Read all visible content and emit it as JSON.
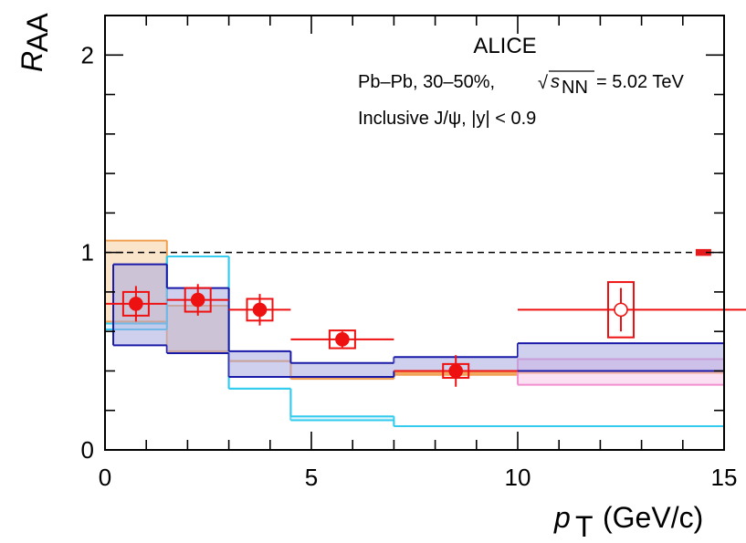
{
  "chart_data": {
    "type": "scatter",
    "title": "ALICE",
    "annotations": {
      "collision": "Pb–Pb, 30–50%,",
      "sqrt_symbol": "√",
      "s_var": "s",
      "s_sub": "NN",
      "energy": "= 5.02 TeV",
      "selection": "Inclusive J/ψ, |y| < 0.9"
    },
    "xlabel": {
      "var": "p",
      "sub": "T",
      "unit": "(GeV/c)"
    },
    "ylabel": {
      "var": "R",
      "sub": "AA"
    },
    "xlim": [
      0,
      15
    ],
    "ylim": [
      0,
      2.2
    ],
    "x_ticks": [
      0,
      5,
      10,
      15
    ],
    "x_tick_labels": [
      "0",
      "5",
      "10",
      "15"
    ],
    "y_ticks": [
      0,
      1,
      2
    ],
    "y_tick_labels": [
      "0",
      "1",
      "2"
    ],
    "reference_line": 1,
    "global_uncertainty": {
      "x": 14.5,
      "low": 0.985,
      "high": 1.015,
      "color": "#e41a1c"
    },
    "data": {
      "name": "ALICE data",
      "color": "#ee1111",
      "points": [
        {
          "x": 0.75,
          "xerr_low": 0.75,
          "xerr_high": 0.75,
          "y": 0.74,
          "stat": 0.09,
          "syst": 0.06,
          "hollow": false
        },
        {
          "x": 2.25,
          "xerr_low": 0.75,
          "xerr_high": 0.75,
          "y": 0.76,
          "stat": 0.08,
          "syst": 0.06,
          "hollow": false
        },
        {
          "x": 3.75,
          "xerr_low": 0.75,
          "xerr_high": 0.75,
          "y": 0.71,
          "stat": 0.08,
          "syst": 0.055,
          "hollow": false
        },
        {
          "x": 5.75,
          "xerr_low": 1.25,
          "xerr_high": 1.25,
          "y": 0.56,
          "stat": 0.04,
          "syst": 0.045,
          "hollow": false
        },
        {
          "x": 8.5,
          "xerr_low": 1.5,
          "xerr_high": 1.5,
          "y": 0.4,
          "stat": 0.08,
          "syst": 0.035,
          "hollow": false
        },
        {
          "x": 12.5,
          "xerr_low": 2.5,
          "xerr_high": 7.5,
          "y": 0.71,
          "stat": 0.11,
          "syst": 0.14,
          "hollow": true
        }
      ]
    },
    "models": [
      {
        "name": "model-orange",
        "color": "#f0a050",
        "fill": "#f6cfa0",
        "bins": [
          {
            "x0": 0,
            "x1": 1.5,
            "low": 0.65,
            "high": 1.06
          },
          {
            "x0": 1.5,
            "x1": 3,
            "low": 0.5,
            "high": 0.73
          },
          {
            "x0": 3,
            "x1": 4.5,
            "low": 0.45,
            "high": 0.45
          },
          {
            "x0": 4.5,
            "x1": 7,
            "low": 0.36,
            "high": 0.37
          },
          {
            "x0": 7,
            "x1": 10,
            "low": 0.38,
            "high": 0.39
          },
          {
            "x0": 10,
            "x1": 15,
            "low": 0.39,
            "high": 0.4
          }
        ]
      },
      {
        "name": "model-pink",
        "color": "#f090d0",
        "fill": "#f8c6ea",
        "bins": [
          {
            "x0": 10,
            "x1": 15,
            "low": 0.33,
            "high": 0.46
          }
        ]
      },
      {
        "name": "model-lightblue",
        "color": "#33ccee",
        "fill": "#c4ecf8",
        "bins": [
          {
            "x0": 0,
            "x1": 1.5,
            "low": 0.61,
            "high": 0.64
          },
          {
            "x0": 1.5,
            "x1": 3,
            "low": 0.98,
            "high": 0.98
          },
          {
            "x0": 3,
            "x1": 4.5,
            "low": 0.31,
            "high": 0.31
          },
          {
            "x0": 4.5,
            "x1": 7,
            "low": 0.15,
            "high": 0.17
          },
          {
            "x0": 7,
            "x1": 15,
            "low": 0.12,
            "high": 0.12
          }
        ]
      },
      {
        "name": "model-navy",
        "color": "#1a1aa8",
        "fill": "#a8a8e0",
        "bins": [
          {
            "x0": 0.2,
            "x1": 1.5,
            "low": 0.53,
            "high": 0.94
          },
          {
            "x0": 1.5,
            "x1": 3,
            "low": 0.49,
            "high": 0.82
          },
          {
            "x0": 3,
            "x1": 4.5,
            "low": 0.37,
            "high": 0.5
          },
          {
            "x0": 4.5,
            "x1": 7,
            "low": 0.37,
            "high": 0.44
          },
          {
            "x0": 7,
            "x1": 10,
            "low": 0.4,
            "high": 0.47
          },
          {
            "x0": 10,
            "x1": 15,
            "low": 0.4,
            "high": 0.54
          }
        ]
      }
    ]
  }
}
